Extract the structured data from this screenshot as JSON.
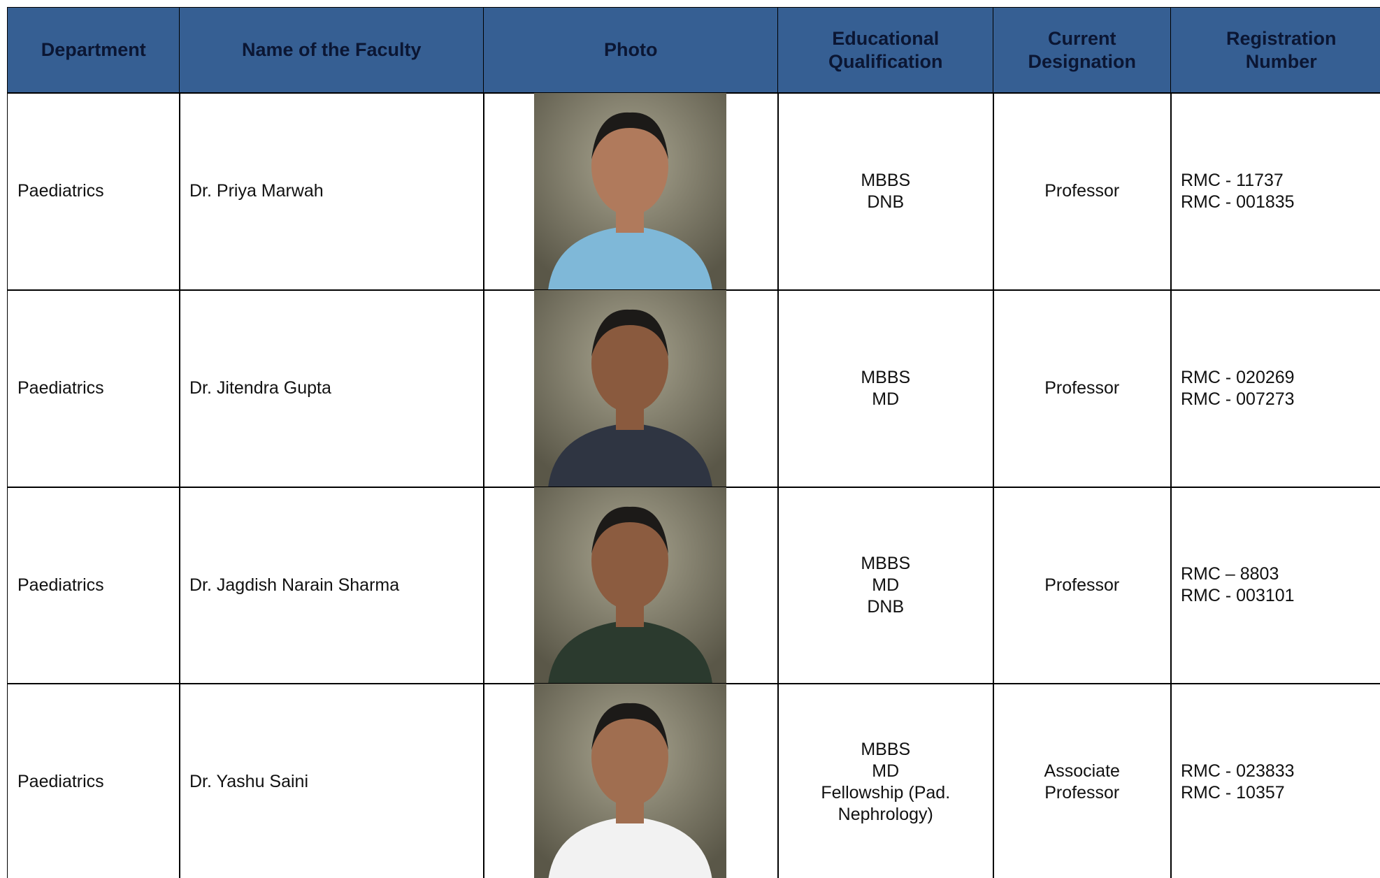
{
  "table": {
    "headers": [
      [
        "Department"
      ],
      [
        "Name of the Faculty"
      ],
      [
        "Photo"
      ],
      [
        "Educational",
        "Qualification"
      ],
      [
        "Current",
        "Designation"
      ],
      [
        "Registration",
        "Number"
      ]
    ],
    "rows": [
      {
        "department": "Paediatrics",
        "name": "Dr. Priya Marwah",
        "qualification": [
          "MBBS",
          "DNB"
        ],
        "designation": [
          "Professor"
        ],
        "registration": [
          "RMC - 11737",
          "RMC - 001835"
        ]
      },
      {
        "department": "Paediatrics",
        "name": "Dr. Jitendra Gupta",
        "qualification": [
          "MBBS",
          "MD"
        ],
        "designation": [
          "Professor"
        ],
        "registration": [
          "RMC - 020269",
          "RMC - 007273"
        ]
      },
      {
        "department": "Paediatrics",
        "name": "Dr. Jagdish Narain Sharma",
        "qualification": [
          "MBBS",
          "MD",
          "DNB"
        ],
        "designation": [
          "Professor"
        ],
        "registration": [
          "RMC – 8803",
          "RMC - 003101"
        ]
      },
      {
        "department": "Paediatrics",
        "name": "Dr. Yashu Saini",
        "qualification": [
          "MBBS",
          "MD",
          "Fellowship (Pad.",
          "Nephrology)"
        ],
        "designation": [
          "Associate",
          "Professor"
        ],
        "registration": [
          "RMC - 023833",
          "RMC - 10357"
        ]
      }
    ]
  }
}
